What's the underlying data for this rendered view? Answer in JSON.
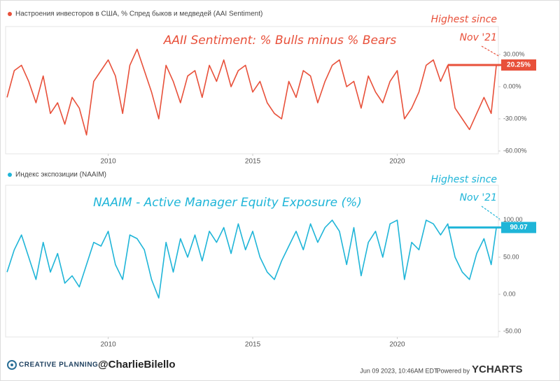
{
  "chart_data": [
    {
      "type": "line",
      "annotations": [
        "AAII Sentiment: % Bulls minus % Bears",
        "Highest since",
        "Nov '21"
      ],
      "x": [
        2006.5,
        2006.75,
        2007,
        2007.25,
        2007.5,
        2007.75,
        2008,
        2008.25,
        2008.5,
        2008.75,
        2009,
        2009.25,
        2009.5,
        2009.75,
        2010,
        2010.25,
        2010.5,
        2010.75,
        2011,
        2011.25,
        2011.5,
        2011.75,
        2012,
        2012.25,
        2012.5,
        2012.75,
        2013,
        2013.25,
        2013.5,
        2013.75,
        2014,
        2014.25,
        2014.5,
        2014.75,
        2015,
        2015.25,
        2015.5,
        2015.75,
        2016,
        2016.25,
        2016.5,
        2016.75,
        2017,
        2017.25,
        2017.5,
        2017.75,
        2018,
        2018.25,
        2018.5,
        2018.75,
        2019,
        2019.25,
        2019.5,
        2019.75,
        2020,
        2020.25,
        2020.5,
        2020.75,
        2021,
        2021.25,
        2021.5,
        2021.75,
        2022,
        2022.25,
        2022.5,
        2022.75,
        2023,
        2023.25,
        2023.43
      ],
      "series": [
        {
          "name": "Настроения инвесторов в США, % Спред быков и медведей (AAI Sentiment)",
          "color": "#e8503a",
          "values": [
            -10,
            15,
            20,
            5,
            -15,
            10,
            -25,
            -15,
            -35,
            -10,
            -20,
            -45,
            5,
            15,
            25,
            10,
            -25,
            20,
            35,
            15,
            -5,
            -30,
            20,
            5,
            -15,
            10,
            15,
            -10,
            20,
            5,
            25,
            0,
            15,
            20,
            -5,
            5,
            -15,
            -25,
            -30,
            5,
            -10,
            15,
            10,
            -15,
            5,
            20,
            25,
            0,
            5,
            -20,
            10,
            -5,
            -15,
            5,
            15,
            -30,
            -20,
            -5,
            20,
            25,
            5,
            20,
            -20,
            -30,
            -40,
            -25,
            -10,
            -25,
            20.25
          ],
          "value_labels": [
            null,
            null,
            null,
            null,
            null,
            null,
            null,
            null,
            null,
            null,
            null,
            null,
            null,
            null,
            null,
            null,
            null,
            null,
            null,
            null,
            null,
            null,
            null,
            null,
            null,
            null,
            null,
            null,
            null,
            null,
            null,
            null,
            null,
            null,
            null,
            null,
            null,
            null,
            null,
            null,
            null,
            null,
            null,
            null,
            null,
            null,
            null,
            null,
            null,
            null,
            null,
            null,
            null,
            null,
            null,
            null,
            null,
            null,
            null,
            null,
            null,
            null,
            null,
            null,
            null,
            null,
            null,
            null,
            "20.25%"
          ]
        }
      ],
      "xlim": [
        2006.45,
        2023.5
      ],
      "xticks": [
        2010,
        2015,
        2020
      ],
      "ylim": [
        -62.6,
        56.1
      ],
      "yticks": [
        {
          "value": 30,
          "label": "30.00%"
        },
        {
          "value": 0,
          "label": "0.00%"
        },
        {
          "value": -30,
          "label": "-30.00%"
        },
        {
          "value": -60,
          "label": "-60.00%"
        }
      ]
    },
    {
      "type": "line",
      "annotations": [
        "NAAIM - Active Manager Equity Exposure (%)",
        "Highest since",
        "Nov '21"
      ],
      "x": [
        2006.5,
        2006.75,
        2007,
        2007.25,
        2007.5,
        2007.75,
        2008,
        2008.25,
        2008.5,
        2008.75,
        2009,
        2009.25,
        2009.5,
        2009.75,
        2010,
        2010.25,
        2010.5,
        2010.75,
        2011,
        2011.25,
        2011.5,
        2011.75,
        2012,
        2012.25,
        2012.5,
        2012.75,
        2013,
        2013.25,
        2013.5,
        2013.75,
        2014,
        2014.25,
        2014.5,
        2014.75,
        2015,
        2015.25,
        2015.5,
        2015.75,
        2016,
        2016.25,
        2016.5,
        2016.75,
        2017,
        2017.25,
        2017.5,
        2017.75,
        2018,
        2018.25,
        2018.5,
        2018.75,
        2019,
        2019.25,
        2019.5,
        2019.75,
        2020,
        2020.25,
        2020.5,
        2020.75,
        2021,
        2021.25,
        2021.5,
        2021.75,
        2022,
        2022.25,
        2022.5,
        2022.75,
        2023,
        2023.25,
        2023.43
      ],
      "series": [
        {
          "name": "Индекс экспозиции (NAAIM)",
          "color": "#1fb5d8",
          "values": [
            30,
            60,
            80,
            50,
            20,
            70,
            30,
            55,
            15,
            25,
            10,
            40,
            70,
            65,
            85,
            40,
            20,
            80,
            75,
            60,
            20,
            -5,
            70,
            30,
            75,
            50,
            80,
            45,
            85,
            70,
            90,
            55,
            95,
            60,
            85,
            50,
            30,
            20,
            45,
            65,
            85,
            60,
            95,
            70,
            90,
            100,
            85,
            40,
            90,
            25,
            70,
            85,
            50,
            95,
            100,
            20,
            70,
            60,
            100,
            95,
            80,
            95,
            50,
            30,
            20,
            55,
            75,
            40,
            90.07
          ],
          "value_labels": [
            null,
            null,
            null,
            null,
            null,
            null,
            null,
            null,
            null,
            null,
            null,
            null,
            null,
            null,
            null,
            null,
            null,
            null,
            null,
            null,
            null,
            null,
            null,
            null,
            null,
            null,
            null,
            null,
            null,
            null,
            null,
            null,
            null,
            null,
            null,
            null,
            null,
            null,
            null,
            null,
            null,
            null,
            null,
            null,
            null,
            null,
            null,
            null,
            null,
            null,
            null,
            null,
            null,
            null,
            null,
            null,
            null,
            null,
            null,
            null,
            null,
            null,
            null,
            null,
            null,
            null,
            null,
            null,
            "90.07"
          ]
        }
      ],
      "xlim": [
        2006.45,
        2023.5
      ],
      "xticks": [
        2010,
        2015,
        2020
      ],
      "ylim": [
        -57.5,
        147
      ],
      "yticks": [
        {
          "value": 100,
          "label": "100.00"
        },
        {
          "value": 50,
          "label": "50.00"
        },
        {
          "value": 0,
          "label": "0.00"
        },
        {
          "value": -50,
          "label": "-50.00"
        }
      ]
    }
  ],
  "footer": {
    "brand": "CREATIVE PLANNING",
    "handle": "@CharlieBilello",
    "timestamp": "Jun 09 2023, 10:46AM EDT.",
    "powered": "Powered by",
    "provider": "YCHARTS"
  }
}
